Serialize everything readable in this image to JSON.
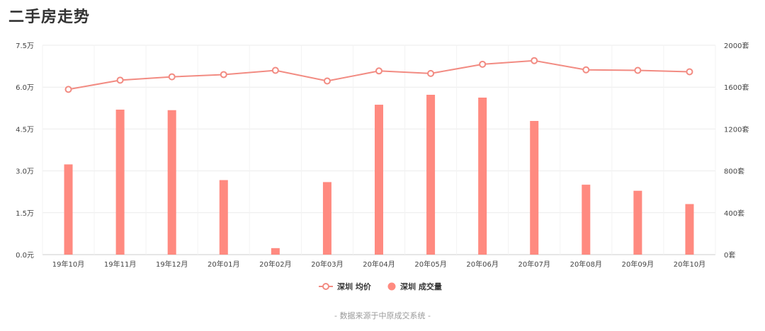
{
  "title": "二手房走势",
  "footer": "- 数据来源于中原成交系统 -",
  "colors": {
    "bar": "#ff8a80",
    "line": "#f28b82",
    "grid": "#ebebeb",
    "axis": "#cccccc"
  },
  "chart_data": {
    "type": "bar+line",
    "categories": [
      "19年10月",
      "19年11月",
      "19年12月",
      "20年01月",
      "20年02月",
      "20年03月",
      "20年04月",
      "20年05月",
      "20年06月",
      "20年07月",
      "20年08月",
      "20年09月",
      "20年10月"
    ],
    "y_left": {
      "range": [
        0,
        75000
      ],
      "ticks": [
        0,
        15000,
        30000,
        45000,
        60000,
        75000
      ],
      "tick_labels": [
        "0.0元",
        "1.5万",
        "3.0万",
        "4.5万",
        "6.0万",
        "7.5万"
      ]
    },
    "y_right": {
      "range": [
        0,
        2000
      ],
      "ticks": [
        0,
        400,
        800,
        1200,
        1600,
        2000
      ],
      "tick_labels": [
        "0套",
        "400套",
        "800套",
        "1200套",
        "1600套",
        "2000套"
      ]
    },
    "series": [
      {
        "name": "深圳 均价",
        "type": "line",
        "axis": "left",
        "values": [
          59200,
          62500,
          63700,
          64500,
          66000,
          62200,
          65800,
          64900,
          68200,
          69500,
          66200,
          66000,
          65500
        ]
      },
      {
        "name": "深圳 成交量",
        "type": "bar",
        "axis": "right",
        "values": [
          862,
          1385,
          1380,
          712,
          62,
          693,
          1432,
          1527,
          1500,
          1277,
          668,
          610,
          483
        ]
      }
    ],
    "grid": true,
    "legend_position": "bottom"
  }
}
